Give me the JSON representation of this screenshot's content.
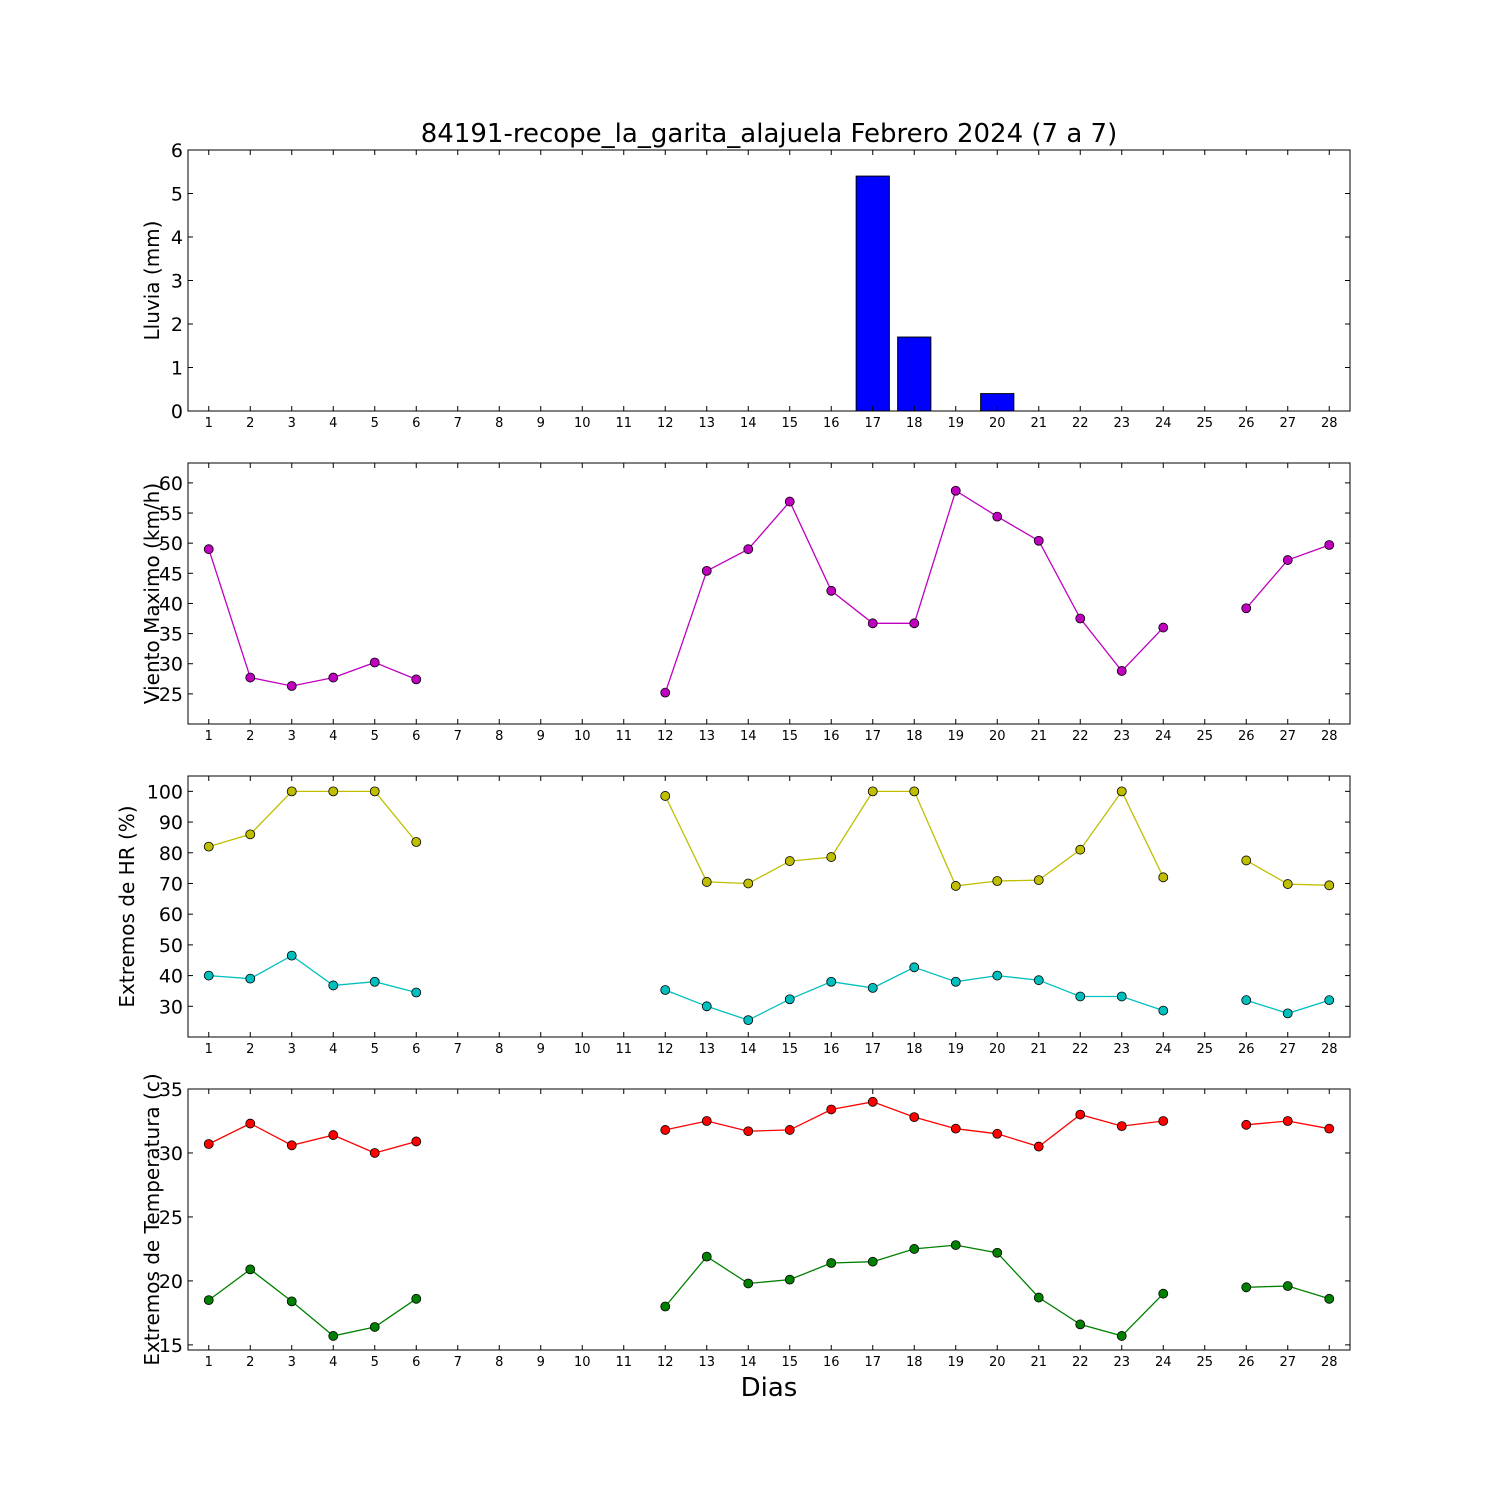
{
  "title": "84191-recope_la_garita_alajuela Febrero 2024  (7 a 7)",
  "xlabel": "Dias",
  "chart_data": [
    {
      "type": "bar",
      "ylabel": "Lluvia (mm)",
      "x": [
        1,
        2,
        3,
        4,
        5,
        6,
        7,
        8,
        9,
        10,
        11,
        12,
        13,
        14,
        15,
        16,
        17,
        18,
        19,
        20,
        21,
        22,
        23,
        24,
        25,
        26,
        27,
        28
      ],
      "xlim": [
        0.5,
        28.5
      ],
      "ylim": [
        0,
        6
      ],
      "yticks": [
        0,
        1,
        2,
        3,
        4,
        5,
        6
      ],
      "series": [
        {
          "color": "#0000ff",
          "values": [
            0,
            0,
            0,
            0,
            0,
            0,
            null,
            null,
            null,
            null,
            null,
            0,
            0,
            0,
            0,
            0,
            5.4,
            1.7,
            0,
            0.4,
            0,
            0,
            0,
            0,
            null,
            0,
            0,
            0
          ]
        }
      ]
    },
    {
      "type": "line",
      "ylabel": "Viento Maximo (km/h)",
      "x": [
        1,
        2,
        3,
        4,
        5,
        6,
        7,
        8,
        9,
        10,
        11,
        12,
        13,
        14,
        15,
        16,
        17,
        18,
        19,
        20,
        21,
        22,
        23,
        24,
        25,
        26,
        27,
        28
      ],
      "xlim": [
        0.5,
        28.5
      ],
      "ylim": [
        20,
        63.3
      ],
      "yticks": [
        25,
        30,
        35,
        40,
        45,
        50,
        55,
        60
      ],
      "series": [
        {
          "color": "#bf00bf",
          "values": [
            49,
            27.7,
            26.3,
            27.7,
            30.2,
            27.4,
            null,
            null,
            null,
            null,
            null,
            25.2,
            45.4,
            49,
            56.9,
            42.1,
            36.7,
            36.7,
            58.7,
            54.4,
            50.4,
            37.5,
            28.8,
            36,
            null,
            39.2,
            47.2,
            49.7
          ]
        }
      ]
    },
    {
      "type": "line",
      "ylabel": "Extremos de HR (%)",
      "x": [
        1,
        2,
        3,
        4,
        5,
        6,
        7,
        8,
        9,
        10,
        11,
        12,
        13,
        14,
        15,
        16,
        17,
        18,
        19,
        20,
        21,
        22,
        23,
        24,
        25,
        26,
        27,
        28
      ],
      "xlim": [
        0.5,
        28.5
      ],
      "ylim": [
        20,
        105
      ],
      "yticks": [
        30,
        40,
        50,
        60,
        70,
        80,
        90,
        100
      ],
      "series": [
        {
          "color": "#bfbf00",
          "values": [
            82,
            86,
            100,
            100,
            100,
            83.5,
            null,
            null,
            null,
            null,
            null,
            98.5,
            70.5,
            70,
            77.3,
            78.6,
            100,
            100,
            69.2,
            70.8,
            71.1,
            81,
            100,
            72,
            null,
            77.5,
            69.8,
            69.4
          ]
        },
        {
          "color": "#00bfbf",
          "values": [
            40,
            39,
            46.5,
            36.8,
            38,
            34.5,
            null,
            null,
            null,
            null,
            null,
            35.3,
            30,
            25.5,
            32.3,
            38,
            36,
            42.7,
            38,
            40,
            38.5,
            33.2,
            33.2,
            28.6,
            null,
            32,
            27.7,
            32
          ]
        }
      ]
    },
    {
      "type": "line",
      "ylabel": "Extremos de Temperatura (c)",
      "x": [
        1,
        2,
        3,
        4,
        5,
        6,
        7,
        8,
        9,
        10,
        11,
        12,
        13,
        14,
        15,
        16,
        17,
        18,
        19,
        20,
        21,
        22,
        23,
        24,
        25,
        26,
        27,
        28
      ],
      "xlim": [
        0.5,
        28.5
      ],
      "ylim": [
        14.6,
        35
      ],
      "yticks": [
        15,
        20,
        25,
        30,
        35
      ],
      "series": [
        {
          "color": "#ff0000",
          "values": [
            30.7,
            32.3,
            30.6,
            31.4,
            30,
            30.9,
            null,
            null,
            null,
            null,
            null,
            31.8,
            32.5,
            31.7,
            31.8,
            33.4,
            34,
            32.8,
            31.9,
            31.5,
            30.5,
            33,
            32.1,
            32.5,
            null,
            32.2,
            32.5,
            31.9
          ]
        },
        {
          "color": "#008000",
          "values": [
            18.5,
            20.9,
            18.4,
            15.7,
            16.4,
            18.6,
            null,
            null,
            null,
            null,
            null,
            18,
            21.9,
            19.8,
            20.1,
            21.4,
            21.5,
            22.5,
            22.8,
            22.2,
            18.7,
            16.6,
            15.7,
            19,
            null,
            19.5,
            19.6,
            18.6
          ]
        }
      ]
    }
  ]
}
